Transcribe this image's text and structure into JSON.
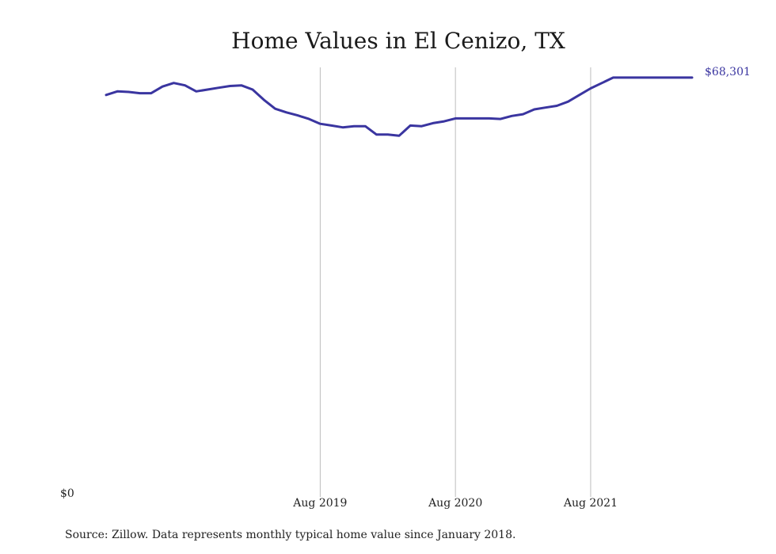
{
  "colors": {
    "line": "#3a35a0",
    "grid": "#bdbdbd",
    "text": "#222222"
  },
  "chart_data": {
    "type": "line",
    "title": "Home Values in El Cenizo, TX",
    "y_min_label": "$0",
    "end_value_label": "$68,301",
    "ylim": [
      0,
      70000
    ],
    "grid": "vertical",
    "x_tick_labels": [
      "Aug 2019",
      "Aug 2020",
      "Aug 2021"
    ],
    "x_tick_dates": [
      "2019-08",
      "2020-08",
      "2021-08"
    ],
    "series": [
      {
        "x": [
          "2018-01",
          "2018-02",
          "2018-03",
          "2018-04",
          "2018-05",
          "2018-06",
          "2018-07",
          "2018-08",
          "2018-09",
          "2018-10",
          "2018-11",
          "2018-12",
          "2019-01",
          "2019-02",
          "2019-03",
          "2019-04",
          "2019-05",
          "2019-06",
          "2019-07",
          "2019-08",
          "2019-09",
          "2019-10",
          "2019-11",
          "2019-12",
          "2020-01",
          "2020-02",
          "2020-03",
          "2020-04",
          "2020-05",
          "2020-06",
          "2020-07",
          "2020-08",
          "2020-09",
          "2020-10",
          "2020-11",
          "2020-12",
          "2021-01",
          "2021-02",
          "2021-03",
          "2021-04",
          "2021-05",
          "2021-06",
          "2021-07",
          "2021-08",
          "2021-09",
          "2021-10",
          "2021-11",
          "2021-12",
          "2022-01",
          "2022-02",
          "2022-03",
          "2022-04",
          "2022-05"
        ],
        "values": [
          65400,
          66000,
          65900,
          65700,
          65700,
          66800,
          67400,
          67000,
          66000,
          66300,
          66600,
          66900,
          67000,
          66300,
          64600,
          63100,
          62500,
          62000,
          61400,
          60600,
          60300,
          60000,
          60200,
          60200,
          58800,
          58800,
          58600,
          60300,
          60200,
          60700,
          61000,
          61500,
          61500,
          61500,
          61500,
          61400,
          61900,
          62200,
          63000,
          63300,
          63600,
          64300,
          65400,
          66500,
          67400,
          68301,
          68301,
          68301,
          68301,
          68301,
          68301,
          68301,
          68301
        ]
      }
    ]
  },
  "source": "Source: Zillow. Data represents monthly typical home value since January 2018."
}
